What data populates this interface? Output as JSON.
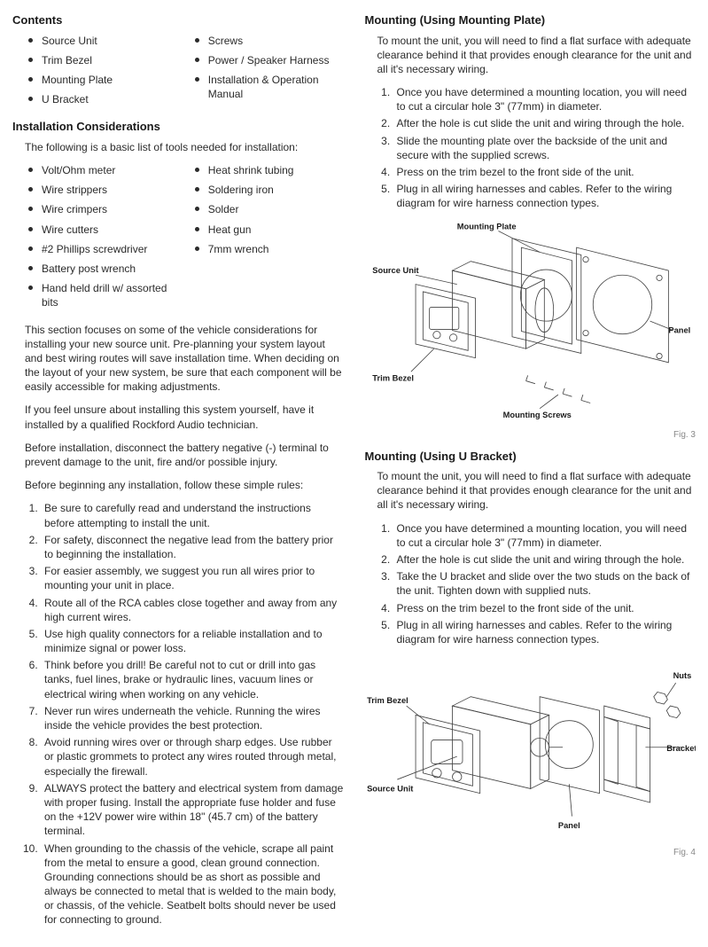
{
  "left": {
    "heading_contents": "Contents",
    "contents_col1": [
      "Source Unit",
      "Trim Bezel",
      "Mounting Plate",
      "U Bracket"
    ],
    "contents_col2": [
      "Screws",
      "Power / Speaker Harness",
      "Installation & Operation Manual"
    ],
    "heading_install": "Installation Considerations",
    "tools_intro": "The following is a basic list of tools needed for installation:",
    "tools_col1": [
      "Volt/Ohm meter",
      "Wire strippers",
      "Wire crimpers",
      "Wire cutters",
      "#2 Phillips screwdriver",
      "Battery post wrench",
      "Hand held drill w/ assorted bits"
    ],
    "tools_col2": [
      "Heat shrink tubing",
      "Soldering iron",
      "Solder",
      "Heat gun",
      "7mm wrench"
    ],
    "para1": "This section focuses on some of the vehicle considerations for installing your new source unit. Pre-planning your system layout and best wiring routes will save installation time. When deciding on the layout of your new system, be sure that each component will be easily accessible for making adjustments.",
    "para2": "If you feel unsure about installing this system yourself, have it installed by a qualified Rockford Audio technician.",
    "para3": "Before installation, disconnect the battery negative (-) terminal to prevent damage to the unit, fire and/or possible injury.",
    "para4": "Before beginning any installation, follow these simple rules:",
    "rules": [
      "Be sure to carefully read and understand the instructions before attempting to install the unit.",
      "For safety, disconnect the negative lead from the battery prior to beginning the installation.",
      "For easier assembly, we suggest you run all wires prior to mounting your unit in place.",
      "Route all of the RCA cables close together and away from any high current wires.",
      "Use high quality connectors for a reliable installation and to minimize signal or power loss.",
      "Think before you drill! Be careful not to cut or drill into gas tanks, fuel lines, brake or hydraulic lines, vacuum lines or electrical wiring when working on any vehicle.",
      "Never run wires underneath the vehicle. Running the wires inside the vehicle provides the best protection.",
      "Avoid running wires over or through sharp edges. Use rubber or plastic grommets to protect any wires routed through metal, especially the firewall.",
      "ALWAYS protect the battery and electrical system from damage with proper fusing. Install the appropriate fuse holder and fuse on the +12V power wire within 18\" (45.7 cm) of the battery terminal.",
      "When grounding to the chassis of the vehicle, scrape all paint from the metal to ensure a good, clean ground connection. Grounding connections should be as short as possible and always be connected to metal that is welded to the main body, or chassis, of the vehicle. Seatbelt bolts should never be used for connecting to ground."
    ]
  },
  "right": {
    "heading_mplate": "Mounting (Using Mounting Plate)",
    "mplate_intro": "To mount the unit, you will need to find a flat surface with adequate clearance behind it that provides enough clearance for the unit and all it's necessary wiring.",
    "mplate_steps": [
      "Once you have determined a mounting location, you will need to cut a circular hole 3\" (77mm) in diameter.",
      "After the hole is cut slide the unit and wiring through the hole.",
      "Slide the mounting plate over the backside of the unit and secure with the supplied screws.",
      "Press on the trim bezel to the front side of the unit.",
      "Plug in all wiring harnesses and cables. Refer to the wiring diagram for wire harness connection types."
    ],
    "fig3_labels": {
      "mounting_plate": "Mounting Plate",
      "source_unit": "Source Unit",
      "trim_bezel": "Trim Bezel",
      "mounting_screws": "Mounting Screws",
      "panel": "Panel"
    },
    "fig3_caption": "Fig. 3",
    "heading_ubracket": "Mounting (Using U Bracket)",
    "ubracket_intro": "To mount the unit, you will need to find a flat surface with adequate clearance behind it that provides enough clearance for the unit and all it's necessary wiring.",
    "ubracket_steps": [
      "Once you have determined a mounting location, you will need to cut a circular hole 3\" (77mm) in diameter.",
      "After the hole is cut slide the unit and wiring through the hole.",
      "Take the U bracket and slide over the two studs on the back of the unit. Tighten down with supplied nuts.",
      "Press on the trim bezel to the front side of the unit.",
      "Plug in all wiring harnesses and cables. Refer to the wiring diagram for wire harness connection types."
    ],
    "fig4_labels": {
      "trim_bezel": "Trim Bezel",
      "source_unit": "Source Unit",
      "panel": "Panel",
      "nuts": "Nuts",
      "bracket": "Bracket"
    },
    "fig4_caption": "Fig. 4"
  }
}
